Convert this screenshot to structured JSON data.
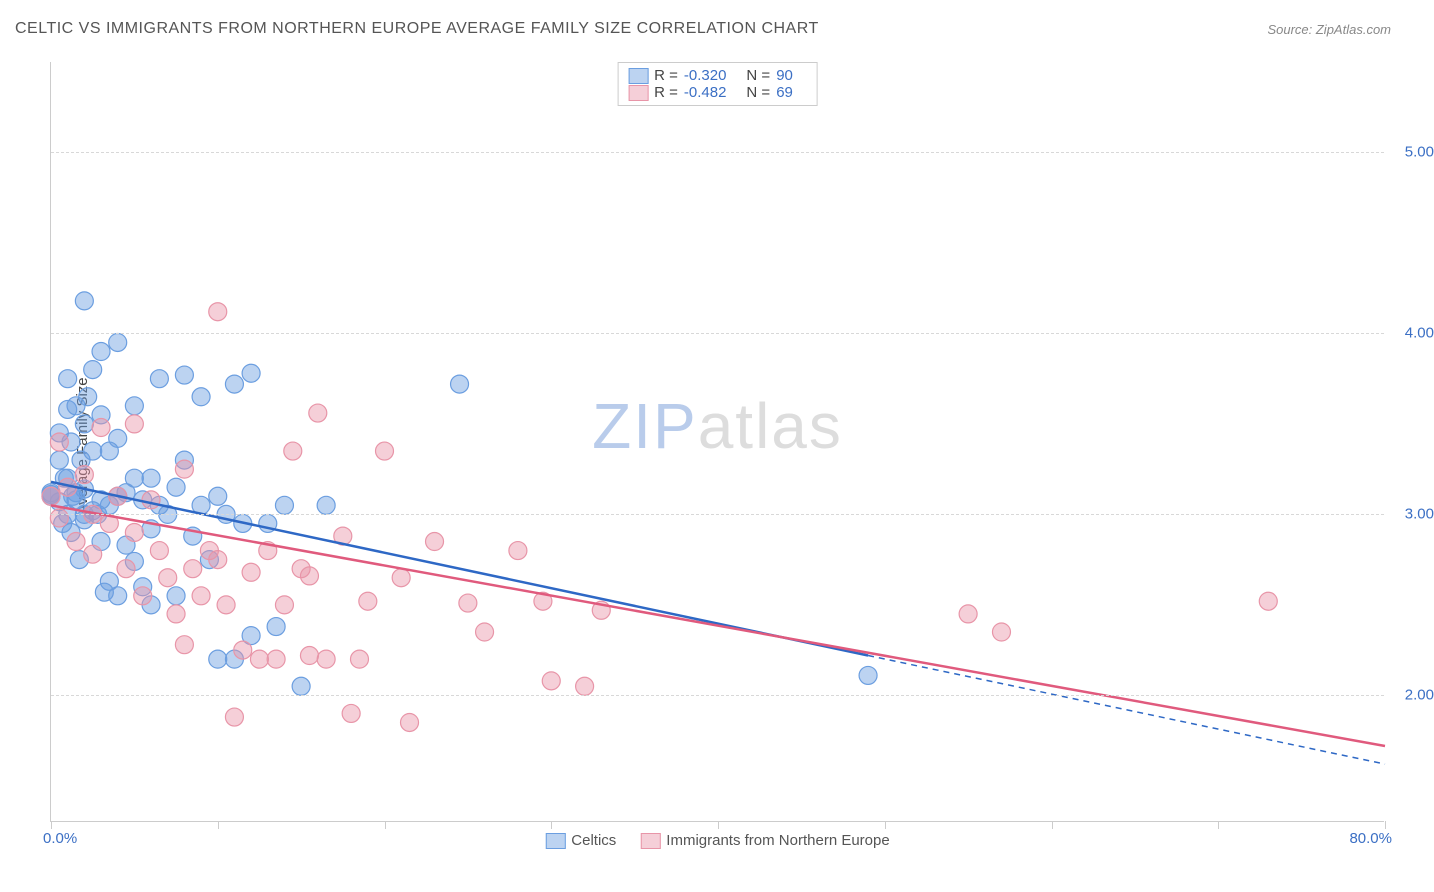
{
  "title": "CELTIC VS IMMIGRANTS FROM NORTHERN EUROPE AVERAGE FAMILY SIZE CORRELATION CHART",
  "source": "Source: ZipAtlas.com",
  "chart": {
    "type": "scatter",
    "background_color": "#ffffff",
    "grid_color": "#d8d8d8",
    "axis_color": "#cccccc",
    "ylabel": "Average Family Size",
    "ylabel_fontsize": 15,
    "xlim": [
      0.0,
      80.0
    ],
    "ylim": [
      1.3,
      5.5
    ],
    "yticks": [
      2.0,
      3.0,
      4.0,
      5.0
    ],
    "ytick_labels": [
      "2.00",
      "3.00",
      "4.00",
      "5.00"
    ],
    "xtick_positions": [
      0,
      10,
      20,
      30,
      40,
      50,
      60,
      70,
      80
    ],
    "xaxis_min_label": "0.0%",
    "xaxis_max_label": "80.0%",
    "tick_label_color": "#3b6fc4",
    "marker_radius": 9,
    "marker_opacity": 0.55,
    "line_width": 2.5,
    "watermark": {
      "text1": "ZIP",
      "text2": "atlas",
      "color1": "#b9cceb",
      "color2": "#dddddd"
    },
    "series": [
      {
        "name": "Celtics",
        "color": "#6b9ee0",
        "fill": "rgba(107,158,224,0.45)",
        "line_color": "#2e68c5",
        "R": "-0.320",
        "N": "90",
        "regression": {
          "x1": 0.0,
          "y1": 3.18,
          "x2": 49.0,
          "y2": 2.22,
          "dash_to_x": 80.0,
          "dash_to_y": 1.62
        },
        "points": [
          [
            0.0,
            3.1
          ],
          [
            0.0,
            3.11
          ],
          [
            0.0,
            3.12
          ],
          [
            0.5,
            3.45
          ],
          [
            0.5,
            3.3
          ],
          [
            0.5,
            3.07
          ],
          [
            0.7,
            2.95
          ],
          [
            0.8,
            3.2
          ],
          [
            1.0,
            3.75
          ],
          [
            1.0,
            3.58
          ],
          [
            1.0,
            3.2
          ],
          [
            1.0,
            3.0
          ],
          [
            1.2,
            2.9
          ],
          [
            1.2,
            3.4
          ],
          [
            1.3,
            3.1
          ],
          [
            1.5,
            3.12
          ],
          [
            1.5,
            3.6
          ],
          [
            1.5,
            3.08
          ],
          [
            1.7,
            2.75
          ],
          [
            1.8,
            3.3
          ],
          [
            2.0,
            4.18
          ],
          [
            2.0,
            3.5
          ],
          [
            2.0,
            3.14
          ],
          [
            2.0,
            3.0
          ],
          [
            2.0,
            2.97
          ],
          [
            2.2,
            3.65
          ],
          [
            2.5,
            3.8
          ],
          [
            2.5,
            3.35
          ],
          [
            2.5,
            3.02
          ],
          [
            2.8,
            3.0
          ],
          [
            3.0,
            3.9
          ],
          [
            3.0,
            3.55
          ],
          [
            3.0,
            3.08
          ],
          [
            3.0,
            2.85
          ],
          [
            3.2,
            2.57
          ],
          [
            3.5,
            3.35
          ],
          [
            3.5,
            3.05
          ],
          [
            3.5,
            2.63
          ],
          [
            4.0,
            3.95
          ],
          [
            4.0,
            3.42
          ],
          [
            4.0,
            3.1
          ],
          [
            4.0,
            2.55
          ],
          [
            4.5,
            3.12
          ],
          [
            4.5,
            2.83
          ],
          [
            5.0,
            3.6
          ],
          [
            5.0,
            3.2
          ],
          [
            5.0,
            2.74
          ],
          [
            5.5,
            3.08
          ],
          [
            5.5,
            2.6
          ],
          [
            6.0,
            3.2
          ],
          [
            6.0,
            2.92
          ],
          [
            6.0,
            2.5
          ],
          [
            6.5,
            3.75
          ],
          [
            6.5,
            3.05
          ],
          [
            7.0,
            3.0
          ],
          [
            7.5,
            3.15
          ],
          [
            7.5,
            2.55
          ],
          [
            8.0,
            3.77
          ],
          [
            8.0,
            3.3
          ],
          [
            8.5,
            2.88
          ],
          [
            9.0,
            3.65
          ],
          [
            9.0,
            3.05
          ],
          [
            9.5,
            2.75
          ],
          [
            10.0,
            3.1
          ],
          [
            10.0,
            2.2
          ],
          [
            10.5,
            3.0
          ],
          [
            11.0,
            3.72
          ],
          [
            11.0,
            2.2
          ],
          [
            11.5,
            2.95
          ],
          [
            12.0,
            3.78
          ],
          [
            12.0,
            2.33
          ],
          [
            13.0,
            2.95
          ],
          [
            13.5,
            2.38
          ],
          [
            14.0,
            3.05
          ],
          [
            15.0,
            2.05
          ],
          [
            16.5,
            3.05
          ],
          [
            24.5,
            3.72
          ],
          [
            49.0,
            2.11
          ]
        ]
      },
      {
        "name": "Immigrants from Northern Europe",
        "color": "#e895a8",
        "fill": "rgba(232,149,168,0.45)",
        "line_color": "#e05a7d",
        "R": "-0.482",
        "N": "69",
        "regression": {
          "x1": 0.0,
          "y1": 3.05,
          "x2": 80.0,
          "y2": 1.72
        },
        "points": [
          [
            0.0,
            3.1
          ],
          [
            0.5,
            3.4
          ],
          [
            0.5,
            2.98
          ],
          [
            1.0,
            3.15
          ],
          [
            1.5,
            2.85
          ],
          [
            2.0,
            3.22
          ],
          [
            2.5,
            3.0
          ],
          [
            2.5,
            2.78
          ],
          [
            3.0,
            3.48
          ],
          [
            3.5,
            2.95
          ],
          [
            4.0,
            3.1
          ],
          [
            4.5,
            2.7
          ],
          [
            5.0,
            3.5
          ],
          [
            5.0,
            2.9
          ],
          [
            5.5,
            2.55
          ],
          [
            6.0,
            3.08
          ],
          [
            6.5,
            2.8
          ],
          [
            7.0,
            2.65
          ],
          [
            7.5,
            2.45
          ],
          [
            8.0,
            3.25
          ],
          [
            8.0,
            2.28
          ],
          [
            8.5,
            2.7
          ],
          [
            9.0,
            2.55
          ],
          [
            9.5,
            2.8
          ],
          [
            10.0,
            4.12
          ],
          [
            10.0,
            2.75
          ],
          [
            10.5,
            2.5
          ],
          [
            11.0,
            1.88
          ],
          [
            11.5,
            2.25
          ],
          [
            12.0,
            2.68
          ],
          [
            12.5,
            2.2
          ],
          [
            13.0,
            2.8
          ],
          [
            13.5,
            2.2
          ],
          [
            14.0,
            2.5
          ],
          [
            14.5,
            3.35
          ],
          [
            15.0,
            2.7
          ],
          [
            15.5,
            2.66
          ],
          [
            15.5,
            2.22
          ],
          [
            16.0,
            3.56
          ],
          [
            16.5,
            2.2
          ],
          [
            17.5,
            2.88
          ],
          [
            18.0,
            1.9
          ],
          [
            18.5,
            2.2
          ],
          [
            19.0,
            2.52
          ],
          [
            20.0,
            3.35
          ],
          [
            21.0,
            2.65
          ],
          [
            21.5,
            1.85
          ],
          [
            23.0,
            2.85
          ],
          [
            25.0,
            2.51
          ],
          [
            26.0,
            2.35
          ],
          [
            28.0,
            2.8
          ],
          [
            29.5,
            2.52
          ],
          [
            30.0,
            2.08
          ],
          [
            32.0,
            2.05
          ],
          [
            33.0,
            2.47
          ],
          [
            55.0,
            2.45
          ],
          [
            57.0,
            2.35
          ],
          [
            73.0,
            2.52
          ]
        ]
      }
    ]
  },
  "stats_box": {
    "rows": [
      {
        "swatch_fill": "rgba(107,158,224,0.45)",
        "swatch_border": "#6b9ee0",
        "r_label": "R =",
        "r_val": "-0.320",
        "n_label": "N =",
        "n_val": "90"
      },
      {
        "swatch_fill": "rgba(232,149,168,0.45)",
        "swatch_border": "#e895a8",
        "r_label": "R =",
        "r_val": "-0.482",
        "n_label": "N =",
        "n_val": "69"
      }
    ]
  },
  "legend": {
    "items": [
      {
        "swatch_fill": "rgba(107,158,224,0.45)",
        "swatch_border": "#6b9ee0",
        "label": "Celtics"
      },
      {
        "swatch_fill": "rgba(232,149,168,0.45)",
        "swatch_border": "#e895a8",
        "label": "Immigrants from Northern Europe"
      }
    ]
  }
}
